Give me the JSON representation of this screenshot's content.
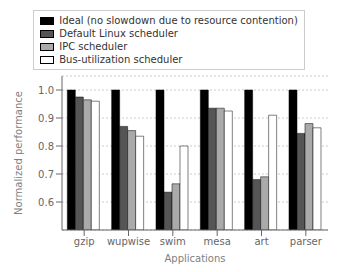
{
  "chart_data": {
    "type": "bar",
    "categories": [
      "gzip",
      "wupwise",
      "swim",
      "mesa",
      "art",
      "parser"
    ],
    "series": [
      {
        "name": "Ideal (no slowdown due to resource contention)",
        "color": "#000000",
        "values": [
          1.0,
          1.0,
          1.0,
          1.0,
          1.0,
          1.0
        ]
      },
      {
        "name": "Default Linux scheduler",
        "color": "#555555",
        "values": [
          0.975,
          0.87,
          0.635,
          0.935,
          0.68,
          0.845
        ]
      },
      {
        "name": "IPC scheduler",
        "color": "#aaaaaa",
        "values": [
          0.965,
          0.855,
          0.665,
          0.935,
          0.69,
          0.88
        ]
      },
      {
        "name": "Bus-utilization scheduler",
        "color": "#ffffff",
        "values": [
          0.96,
          0.835,
          0.8,
          0.925,
          0.91,
          0.865
        ]
      }
    ],
    "xlabel": "Applications",
    "ylabel": "Normalized performance",
    "ylim": [
      0.5,
      1.05
    ],
    "yticks": [
      0.6,
      0.7,
      0.8,
      0.9,
      {
        "value": 1.0,
        "label": "1.0"
      }
    ],
    "grid": true,
    "legend": "top"
  }
}
